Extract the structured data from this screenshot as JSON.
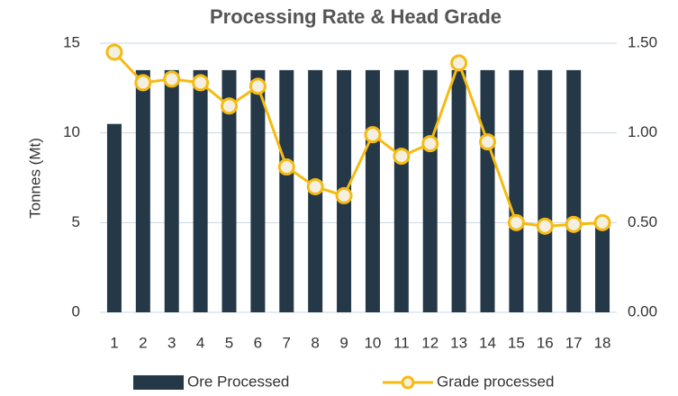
{
  "chart_data": {
    "type": "bar_line",
    "title": "Processing Rate & Head Grade",
    "y_label": "Tonnes (Mt)",
    "categories": [
      "1",
      "2",
      "3",
      "4",
      "5",
      "6",
      "7",
      "8",
      "9",
      "10",
      "11",
      "12",
      "13",
      "14",
      "15",
      "16",
      "17",
      "18"
    ],
    "series": [
      {
        "name": "Ore Processed",
        "color": "#253847",
        "type": "bar",
        "values": [
          10.5,
          13.5,
          13.5,
          13.5,
          13.5,
          13.5,
          13.5,
          13.5,
          13.5,
          13.5,
          13.5,
          13.5,
          13.5,
          13.5,
          13.5,
          13.5,
          13.5,
          5
        ]
      },
      {
        "name": "Grade processed",
        "color": "#f5bb12",
        "type": "line",
        "axis": "y2",
        "values": [
          1.45,
          1.28,
          1.3,
          1.28,
          1.15,
          1.26,
          0.81,
          0.7,
          0.65,
          0.99,
          0.87,
          0.94,
          1.39,
          0.95,
          0.5,
          0.48,
          0.49,
          0.5
        ]
      }
    ],
    "ylim": [
      0,
      15
    ],
    "yticks": [
      0,
      5,
      10,
      15
    ],
    "y2lim": [
      0,
      1.5
    ],
    "y2ticks": [
      {
        "value": 0,
        "label": "0.00"
      },
      {
        "value": 0.5,
        "label": "0.50"
      },
      {
        "value": 1,
        "label": "1.00"
      },
      {
        "value": 1.5,
        "label": "1.50"
      }
    ],
    "grid": true,
    "legend": "bottom"
  }
}
